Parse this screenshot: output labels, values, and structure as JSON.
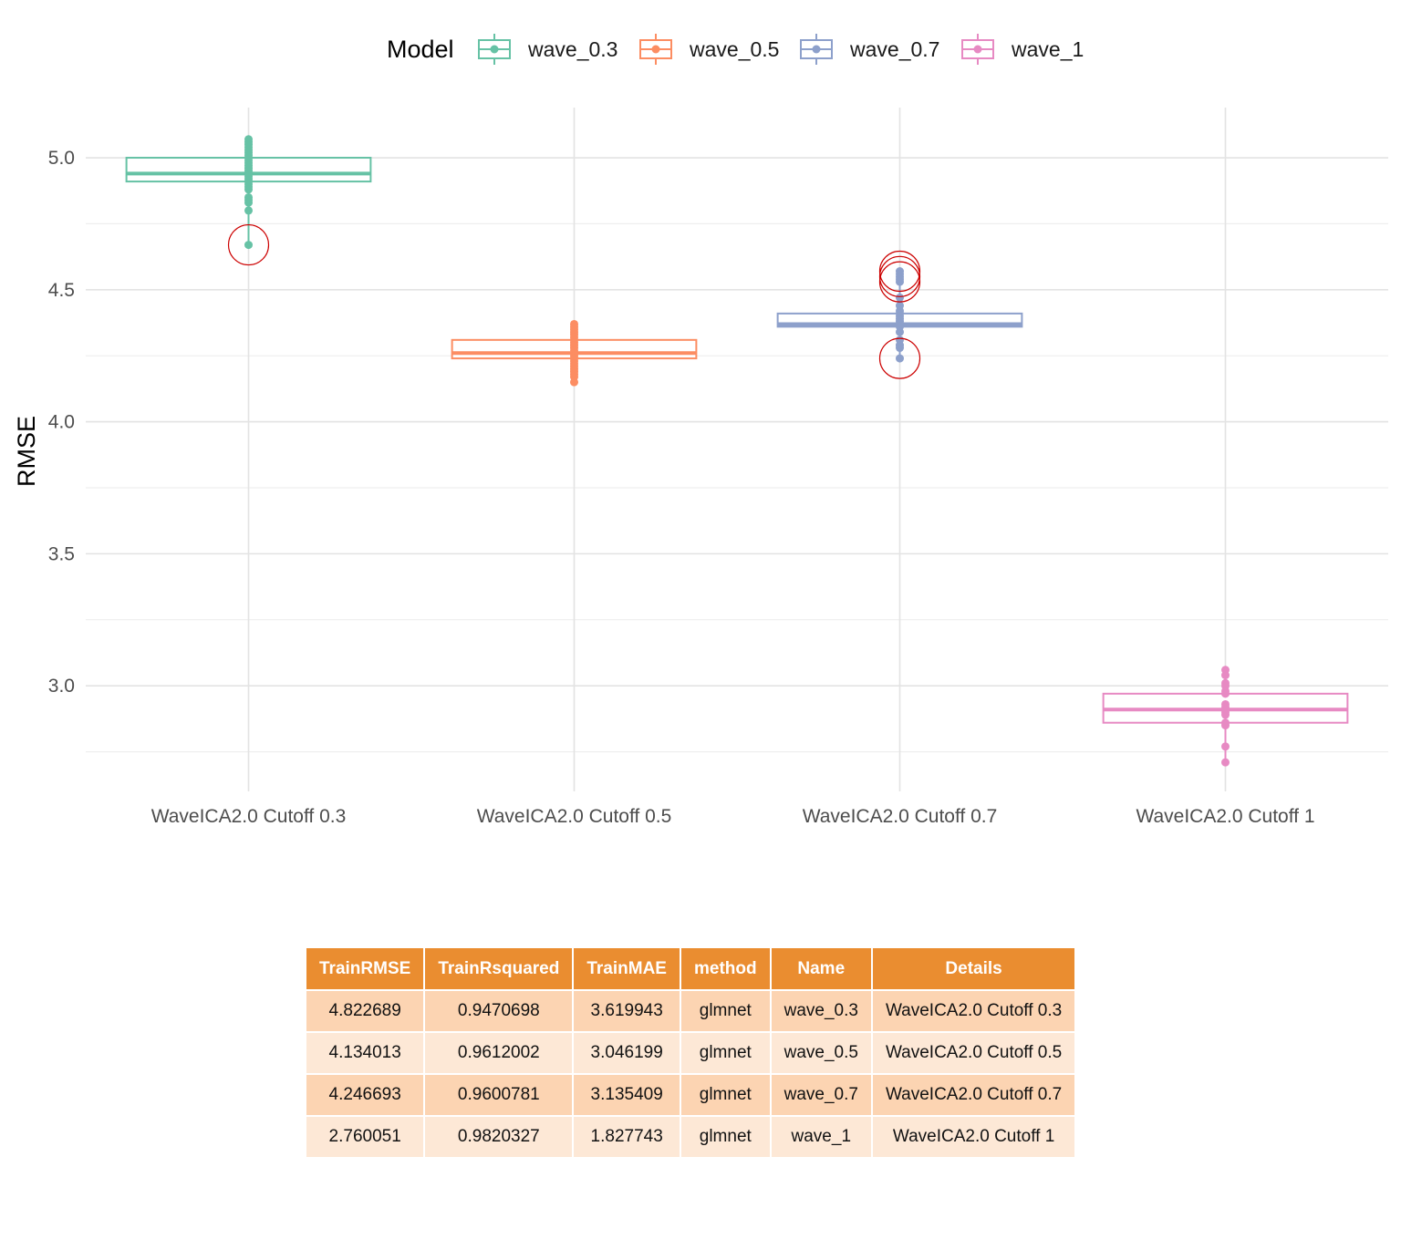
{
  "chart_data": {
    "type": "box",
    "legend": {
      "title": "Model",
      "position": "top",
      "entries": [
        "wave_0.3",
        "wave_0.5",
        "wave_0.7",
        "wave_1"
      ]
    },
    "ylabel": "RMSE",
    "xlabel": "",
    "ylim": [
      2.6,
      5.19
    ],
    "yticks": [
      3.0,
      3.5,
      4.0,
      4.5,
      5.0
    ],
    "ytick_labels": [
      "3.0",
      "3.5",
      "4.0",
      "4.5",
      "5.0"
    ],
    "grid": true,
    "categories": [
      "WaveICA2.0 Cutoff 0.3",
      "WaveICA2.0 Cutoff 0.5",
      "WaveICA2.0 Cutoff 0.7",
      "WaveICA2.0 Cutoff 1"
    ],
    "series": [
      {
        "name": "wave_0.3",
        "color": "#66c2a5",
        "box": {
          "q1": 4.91,
          "median": 4.94,
          "q3": 5.0,
          "whisker_low": 4.67,
          "whisker_high": 5.07
        },
        "points": [
          5.07,
          5.06,
          5.05,
          5.04,
          5.03,
          5.02,
          5.01,
          5.0,
          4.99,
          4.98,
          4.97,
          4.96,
          4.95,
          4.94,
          4.93,
          4.92,
          4.91,
          4.9,
          4.89,
          4.88,
          4.85,
          4.84,
          4.83,
          4.8,
          4.67
        ],
        "highlighted": [
          4.67
        ]
      },
      {
        "name": "wave_0.5",
        "color": "#fc8d62",
        "box": {
          "q1": 4.24,
          "median": 4.26,
          "q3": 4.31,
          "whisker_low": 4.15,
          "whisker_high": 4.37
        },
        "points": [
          4.37,
          4.36,
          4.35,
          4.34,
          4.33,
          4.32,
          4.31,
          4.3,
          4.29,
          4.28,
          4.27,
          4.26,
          4.25,
          4.24,
          4.23,
          4.22,
          4.21,
          4.2,
          4.19,
          4.18,
          4.17,
          4.15
        ],
        "highlighted": []
      },
      {
        "name": "wave_0.7",
        "color": "#8da0cb",
        "box": {
          "q1": 4.36,
          "median": 4.37,
          "q3": 4.41,
          "whisker_low": 4.24,
          "whisker_high": 4.57
        },
        "points": [
          4.57,
          4.56,
          4.55,
          4.54,
          4.53,
          4.47,
          4.44,
          4.42,
          4.41,
          4.4,
          4.39,
          4.38,
          4.37,
          4.36,
          4.34,
          4.31,
          4.29,
          4.28,
          4.24
        ],
        "highlighted": [
          4.57,
          4.55,
          4.53,
          4.24
        ]
      },
      {
        "name": "wave_1",
        "color": "#e78ac3",
        "box": {
          "q1": 2.86,
          "median": 2.91,
          "q3": 2.97,
          "whisker_low": 2.71,
          "whisker_high": 3.06
        },
        "points": [
          3.06,
          3.04,
          3.01,
          3.0,
          2.98,
          2.97,
          2.93,
          2.92,
          2.91,
          2.9,
          2.89,
          2.86,
          2.85,
          2.77,
          2.71
        ],
        "highlighted": []
      }
    ],
    "highlight_color": "#cc0000"
  },
  "table": {
    "headers": [
      "TrainRMSE",
      "TrainRsquared",
      "TrainMAE",
      "method",
      "Name",
      "Details"
    ],
    "rows": [
      [
        "4.822689",
        "0.9470698",
        "3.619943",
        "glmnet",
        "wave_0.3",
        "WaveICA2.0 Cutoff 0.3"
      ],
      [
        "4.134013",
        "0.9612002",
        "3.046199",
        "glmnet",
        "wave_0.5",
        "WaveICA2.0 Cutoff 0.5"
      ],
      [
        "4.246693",
        "0.9600781",
        "3.135409",
        "glmnet",
        "wave_0.7",
        "WaveICA2.0 Cutoff 0.7"
      ],
      [
        "2.760051",
        "0.9820327",
        "1.827743",
        "glmnet",
        "wave_1",
        "WaveICA2.0 Cutoff 1"
      ]
    ]
  }
}
